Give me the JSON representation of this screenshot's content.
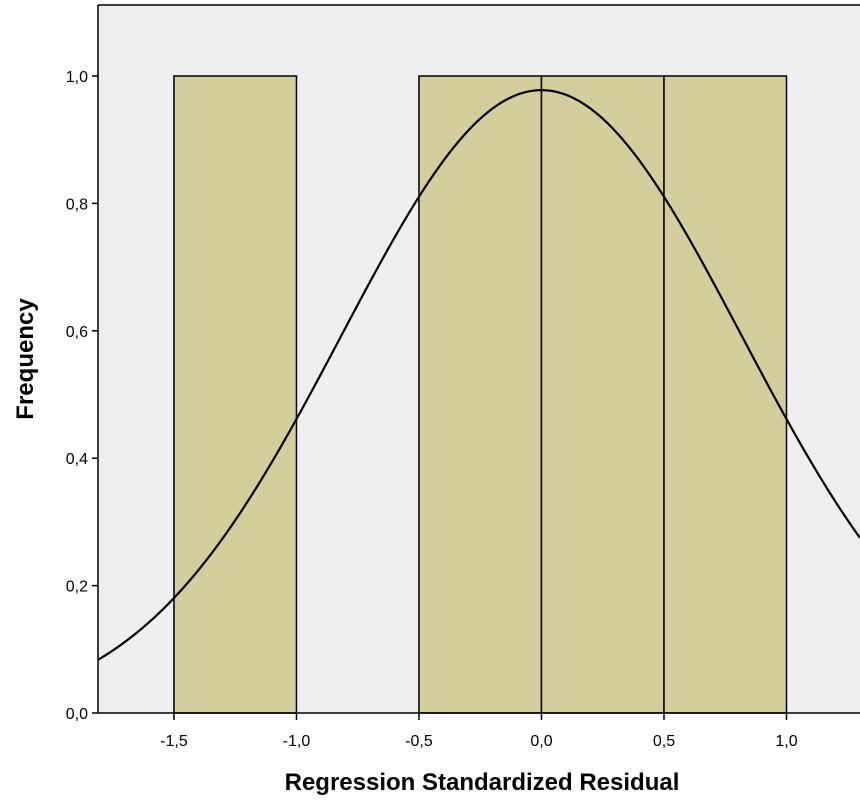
{
  "chart_data": {
    "type": "bar",
    "xlabel": "Regression Standardized Residual",
    "ylabel": "Frequency",
    "xlim": [
      -1.81,
      1.3
    ],
    "ylim": [
      0.0,
      1.0
    ],
    "x_ticks": [
      {
        "value": -1.5,
        "label": "-1,5"
      },
      {
        "value": -1.0,
        "label": "-1,0"
      },
      {
        "value": -0.5,
        "label": "-0,5"
      },
      {
        "value": 0.0,
        "label": "0,0"
      },
      {
        "value": 0.5,
        "label": "0,5"
      },
      {
        "value": 1.0,
        "label": "1,0"
      }
    ],
    "y_ticks": [
      {
        "value": 0.0,
        "label": "0,0"
      },
      {
        "value": 0.2,
        "label": "0,2"
      },
      {
        "value": 0.4,
        "label": "0,4"
      },
      {
        "value": 0.6,
        "label": "0,6"
      },
      {
        "value": 0.8,
        "label": "0,8"
      },
      {
        "value": 1.0,
        "label": "1,0"
      }
    ],
    "bins": [
      {
        "x0": -1.5,
        "x1": -1.0,
        "count": 1
      },
      {
        "x0": -0.5,
        "x1": 0.0,
        "count": 1
      },
      {
        "x0": 0.0,
        "x1": 0.5,
        "count": 1
      },
      {
        "x0": 0.5,
        "x1": 1.0,
        "count": 1
      }
    ],
    "normal_curve": {
      "mean": 0.0,
      "std_dev": 0.816,
      "n": 4,
      "bin_width": 0.5
    },
    "grid": false,
    "colors": {
      "plot_background": "#efefef",
      "bar_fill": "#d3ce9b",
      "bar_stroke": "#000000",
      "curve": "#000000"
    }
  }
}
